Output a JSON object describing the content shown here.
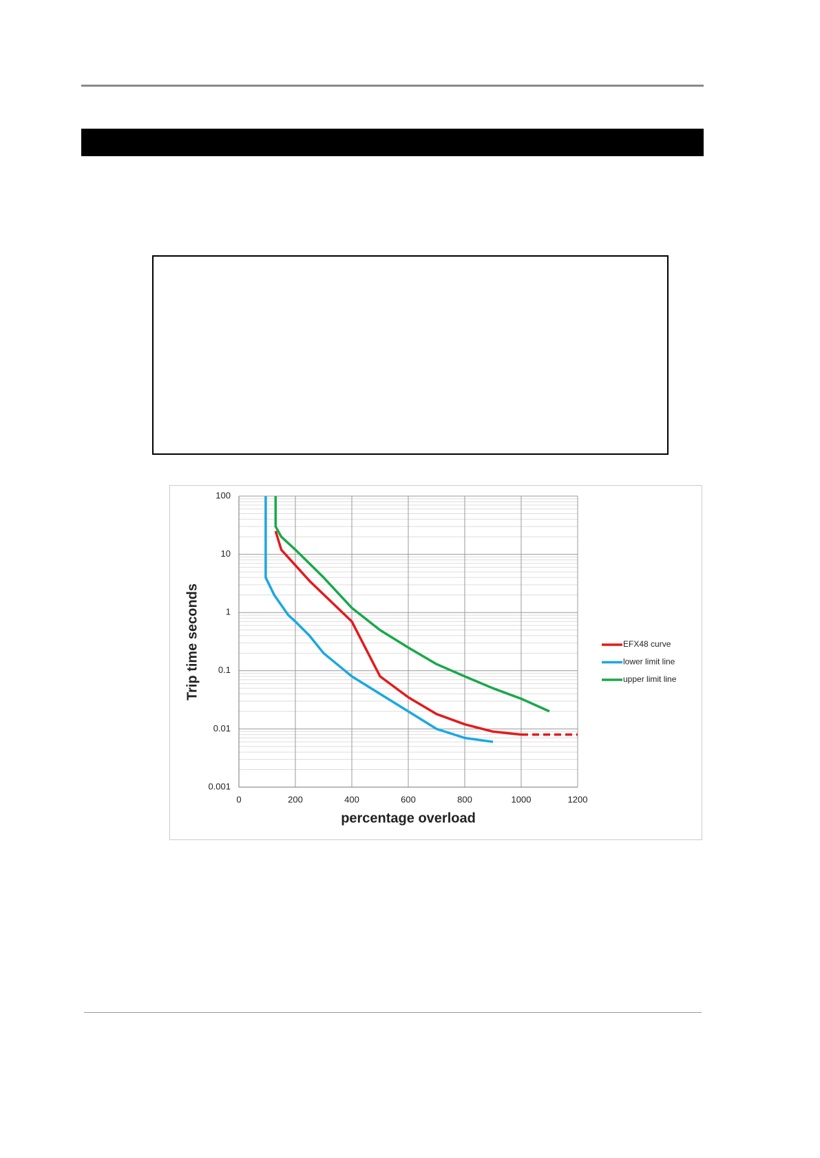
{
  "chart_data": {
    "type": "line",
    "xlabel": "percentage overload",
    "ylabel": "Trip time seconds",
    "xlim": [
      0,
      1200
    ],
    "xticks": [
      0,
      200,
      400,
      600,
      800,
      1000,
      1200
    ],
    "ylim": [
      0.001,
      100
    ],
    "yticks": [
      0.001,
      0.01,
      0.1,
      1,
      10,
      100
    ],
    "log_y": true,
    "grid": true,
    "minor_grid": true,
    "legend": "right",
    "series": [
      {
        "name": "EFX48 curve",
        "color": "#e31a1c",
        "x": [
          130,
          150,
          250,
          400,
          500,
          600,
          700,
          800,
          900,
          1000,
          1200
        ],
        "values": [
          25,
          12,
          3.5,
          0.7,
          0.08,
          0.035,
          0.018,
          0.012,
          0.009,
          0.008,
          0.008
        ],
        "dashed_from_index": 9
      },
      {
        "name": "lower limit line",
        "color": "#1ba8e0",
        "x": [
          95,
          95,
          125,
          175,
          200,
          250,
          300,
          400,
          500,
          600,
          700,
          800,
          900
        ],
        "values": [
          100,
          4,
          2,
          0.9,
          0.7,
          0.4,
          0.2,
          0.08,
          0.04,
          0.02,
          0.01,
          0.007,
          0.006
        ]
      },
      {
        "name": "upper limit line",
        "color": "#1aa84a",
        "x": [
          130,
          130,
          150,
          200,
          300,
          400,
          500,
          600,
          700,
          800,
          900,
          1000,
          1100
        ],
        "values": [
          100,
          30,
          20,
          12,
          4,
          1.2,
          0.5,
          0.25,
          0.13,
          0.08,
          0.05,
          0.033,
          0.02
        ]
      }
    ]
  }
}
